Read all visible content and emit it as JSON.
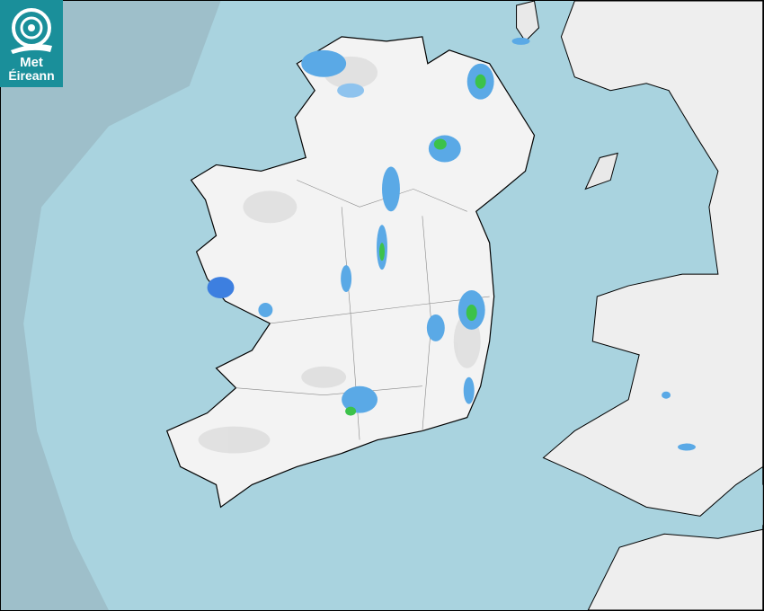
{
  "brand": {
    "line1": "Met",
    "line2": "Éireann",
    "color": "#1a8f9a"
  },
  "map": {
    "type": "rainfall radar",
    "colors": {
      "outside_coverage": "#9ebfca",
      "sea": "#a9d3df",
      "land": "#f2f2f2",
      "relief": "#cfcfcf",
      "rain_light": "#5aa9e6",
      "rain_moderate": "#3d7fe0",
      "rain_heavy": "#3cc24a",
      "coastline": "#000000"
    }
  }
}
